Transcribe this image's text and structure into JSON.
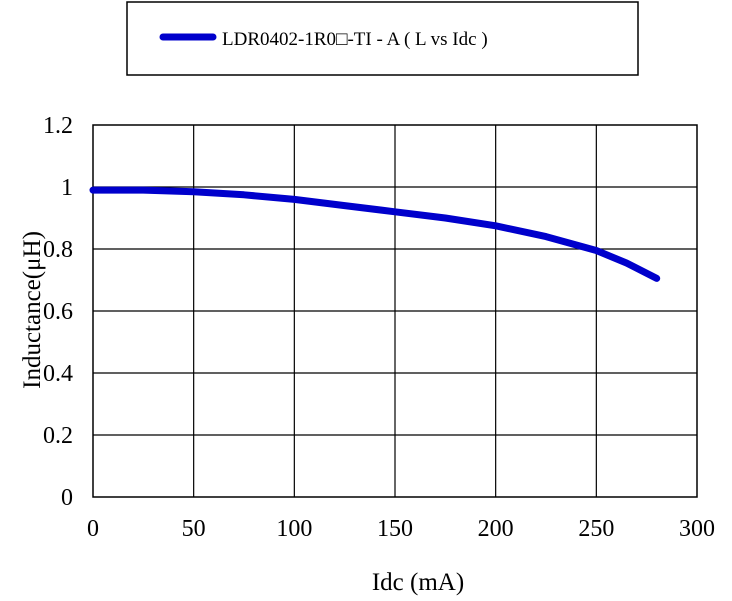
{
  "chart_data": {
    "type": "line",
    "xlabel": "Idc (mA)",
    "ylabel": "Inductance(μH)",
    "xlim": [
      0,
      300
    ],
    "ylim": [
      0,
      1.2
    ],
    "xticks": [
      "0",
      "50",
      "100",
      "150",
      "200",
      "250",
      "300"
    ],
    "yticks": [
      "0",
      "0.2",
      "0.4",
      "0.6",
      "0.8",
      "1",
      "1.2"
    ],
    "grid": true,
    "legend_position": "top-center",
    "series": [
      {
        "name": "LDR0402-1R0□-TI - A ( L vs Idc )",
        "color": "#0000cc",
        "x": [
          0,
          25,
          50,
          75,
          100,
          125,
          150,
          175,
          200,
          225,
          250,
          265,
          280
        ],
        "y": [
          0.99,
          0.99,
          0.985,
          0.975,
          0.96,
          0.94,
          0.92,
          0.9,
          0.875,
          0.84,
          0.795,
          0.755,
          0.705
        ]
      }
    ]
  }
}
